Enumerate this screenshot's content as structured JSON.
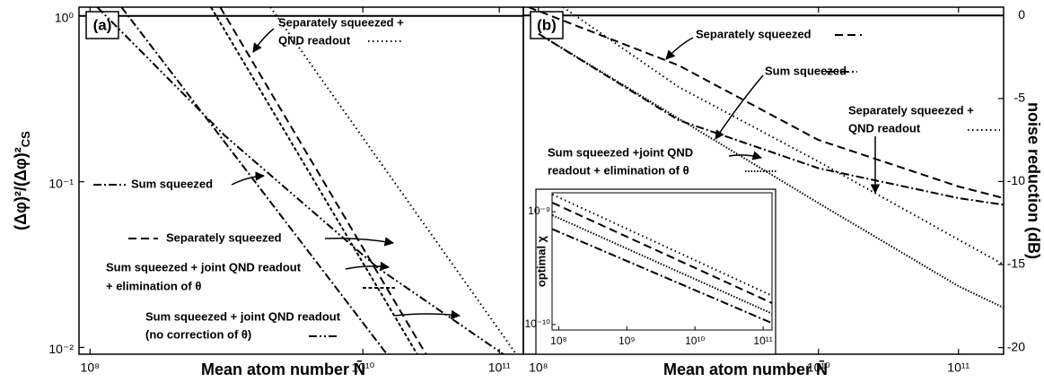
{
  "chart_data": [
    {
      "type": "line",
      "panel_label": "(a)",
      "xlabel": "Mean atom number N̄",
      "ylabel": "(Δφ)²/(Δφ)²",
      "ylabel_subscript": "CS",
      "xscale": "log",
      "yscale": "log",
      "xlim": [
        83000000,
        150000000000
      ],
      "ylim": [
        0.0091,
        1.13
      ],
      "xticks": [
        {
          "value": 100000000,
          "label": "10⁸"
        },
        {
          "value": 10000000000,
          "label": "10¹⁰"
        },
        {
          "value": 100000000000,
          "label": "10¹¹"
        }
      ],
      "yticks": [
        {
          "value": 1,
          "label": "10⁰"
        },
        {
          "value": 0.1,
          "label": "10⁻¹"
        },
        {
          "value": 0.01,
          "label": "10⁻²"
        }
      ],
      "hline": 1,
      "series": [
        {
          "name": [
            "Separately squeezed +",
            "QND readout"
          ],
          "style": "dotted",
          "color": "#000",
          "x": [
            2100000000,
            133000000000
          ],
          "values": [
            1.13,
            0.0091
          ]
        },
        {
          "name": [
            "Separately squeezed"
          ],
          "style": "dashed",
          "color": "#000",
          "x": [
            900000000,
            29000000000
          ],
          "values": [
            1.13,
            0.0091
          ]
        },
        {
          "name": [
            "Sum squeezed + joint QND readout",
            "+ elimination of θ"
          ],
          "style": "shortdash",
          "color": "#000",
          "x": [
            770000000,
            25000000000
          ],
          "values": [
            1.13,
            0.0091
          ]
        },
        {
          "name": [
            "Sum squeezed"
          ],
          "style": "dashdot",
          "color": "#000",
          "x": [
            170000000,
            15000000000
          ],
          "values": [
            1.13,
            0.0091
          ]
        },
        {
          "name": [
            "Sum squeezed + joint QND readout",
            "(no correction of θ)"
          ],
          "style": "dashdotdot",
          "color": "#000",
          "x": [
            113000000,
            970000000,
            13000000000,
            107000000000
          ],
          "values": [
            1.13,
            0.19,
            0.03,
            0.0091
          ]
        }
      ]
    },
    {
      "type": "line",
      "panel_label": "(b)",
      "xlabel": "Mean atom number N̄",
      "y2label": "noise reduction (dB)",
      "xscale": "log",
      "xlim": [
        78000000,
        210000000000
      ],
      "y2lim": [
        -20.4,
        0.5
      ],
      "xticks": [
        {
          "value": 100000000,
          "label": "10⁸"
        },
        {
          "value": 10000000000,
          "label": "10¹⁰"
        },
        {
          "value": 100000000000,
          "label": "10¹¹"
        }
      ],
      "y2ticks": [
        0,
        -5,
        -10,
        -15,
        -20
      ],
      "hline": 0,
      "series": [
        {
          "name": [
            "Separately squeezed"
          ],
          "style": "dashed",
          "color": "#000",
          "axis": "y2",
          "x": [
            85000000,
            1000000000,
            10000000000,
            100000000000,
            210000000000
          ],
          "values": [
            0.5,
            -3.0,
            -7.5,
            -10.3,
            -11
          ]
        },
        {
          "name": [
            "Sum squeezed"
          ],
          "style": "dashdot",
          "color": "#000",
          "axis": "y2",
          "x": [
            100000000,
            1000000000,
            10000000000,
            100000000000,
            210000000000
          ],
          "values": [
            -1.1,
            -6.3,
            -9.2,
            -11,
            -11.4
          ]
        },
        {
          "name": [
            "Separately squeezed +",
            "QND readout"
          ],
          "style": "dotted",
          "color": "#000",
          "axis": "y2",
          "x": [
            150000000,
            1000000000,
            10000000000,
            100000000000,
            210000000000
          ],
          "values": [
            0.5,
            -4.3,
            -8.8,
            -13.5,
            -15
          ]
        },
        {
          "name": [
            "Sum squeezed +joint QND",
            "readout + elimination of θ"
          ],
          "style": "shortdot",
          "color": "#000",
          "axis": "y2",
          "x": [
            100000000,
            1000000000,
            10000000000,
            100000000000,
            210000000000
          ],
          "values": [
            -1.1,
            -6.2,
            -11.3,
            -16.3,
            -17.6
          ]
        }
      ],
      "inset": {
        "type": "line",
        "ylabel": "optimal χ",
        "xscale": "log",
        "yscale": "log",
        "xlim": [
          80000000,
          135000000000
        ],
        "ylim": [
          8.95e-11,
          1.47e-09
        ],
        "xticks": [
          {
            "value": 100000000,
            "label": "10⁸"
          },
          {
            "value": 1000000000,
            "label": "10⁹"
          },
          {
            "value": 10000000000,
            "label": "10¹⁰"
          },
          {
            "value": 100000000000,
            "label": "10¹¹"
          }
        ],
        "yticks": [
          {
            "value": 1e-09,
            "label": "10⁻⁹"
          },
          {
            "value": 1e-10,
            "label": "10⁻¹⁰"
          }
        ],
        "series": [
          {
            "style": "dotted",
            "color": "#000",
            "x": [
              81000000,
              135000000000
            ],
            "values": [
              1.42e-09,
              1.8e-10
            ]
          },
          {
            "style": "dashed",
            "color": "#000",
            "x": [
              81000000,
              135000000000
            ],
            "values": [
              1.2e-09,
              1.55e-10
            ]
          },
          {
            "style": "shortdot",
            "color": "#000",
            "x": [
              81000000,
              135000000000
            ],
            "values": [
              9.3e-10,
              1.25e-10
            ]
          },
          {
            "style": "dashdot",
            "color": "#000",
            "x": [
              81000000,
              135000000000
            ],
            "values": [
              7e-10,
              1.03e-10
            ]
          }
        ]
      }
    }
  ]
}
